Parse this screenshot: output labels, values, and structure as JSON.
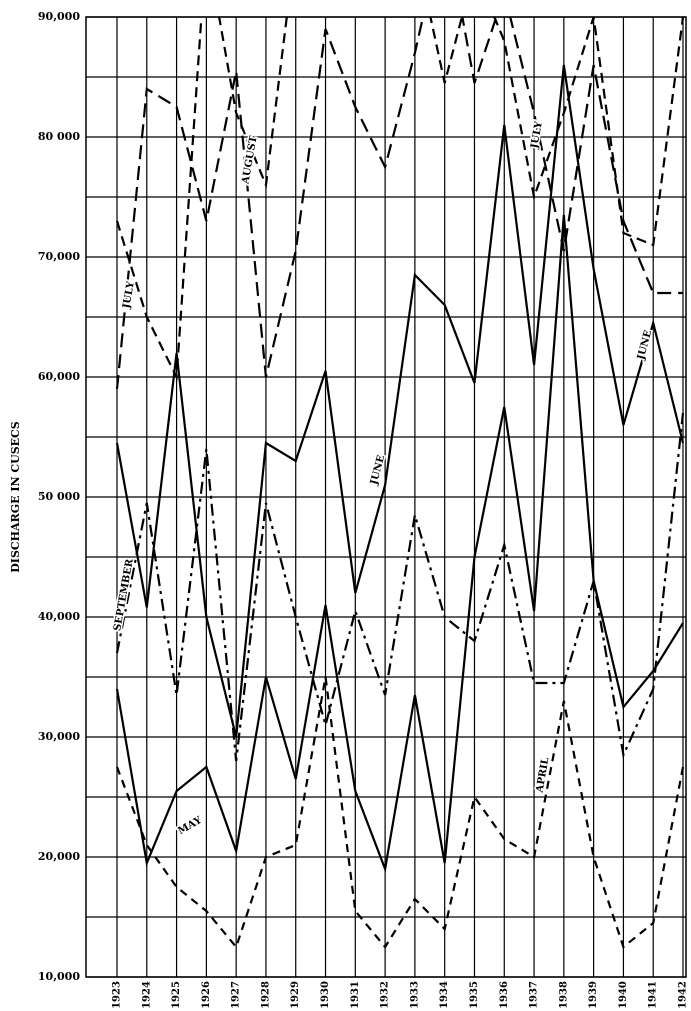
{
  "chart_data": {
    "type": "line",
    "y_label": "DISCHARGE IN CUSECS",
    "categories": [
      "1923",
      "1924",
      "1925",
      "1926",
      "1927",
      "1928",
      "1929",
      "1930",
      "1931",
      "1932",
      "1933",
      "1934",
      "1935",
      "1936",
      "1937",
      "1938",
      "1939",
      "1940",
      "1941",
      "1942"
    ],
    "series": [
      {
        "name": "JUNE",
        "color": "#000000",
        "style": "solid",
        "values": [
          54500,
          40800,
          62000,
          40000,
          30000,
          54500,
          53000,
          60500,
          42000,
          51000,
          68500,
          66000,
          59500,
          81000,
          61000,
          86000,
          69000,
          56000,
          64500,
          54500
        ]
      },
      {
        "name": "MAY",
        "color": "#000000",
        "style": "solid",
        "values": [
          34000,
          19500,
          25500,
          27500,
          20500,
          35000,
          26500,
          41000,
          25500,
          19000,
          33500,
          19500,
          45000,
          57500,
          40500,
          73500,
          43000,
          32500,
          35500,
          39500
        ]
      },
      {
        "name": "JULY",
        "color": "#000000",
        "style": "longdash",
        "values": [
          59000,
          84000,
          82500,
          73000,
          85500,
          60000,
          70500,
          89000,
          82500,
          77500,
          87000,
          98000,
          84500,
          92000,
          82000,
          70500,
          86000,
          73000,
          67000,
          67000
        ]
      },
      {
        "name": "AUGUST",
        "color": "#000000",
        "style": "dashed",
        "values": [
          73000,
          65000,
          60000,
          96000,
          82000,
          76000,
          96000,
          90000,
          95000,
          94000,
          96000,
          84500,
          94000,
          88000,
          75000,
          82000,
          90000,
          72000,
          71000,
          90000
        ]
      },
      {
        "name": "SEPTEMBER",
        "color": "#000000",
        "style": "dashdot",
        "values": [
          37000,
          49500,
          33500,
          54000,
          28000,
          49500,
          40000,
          31000,
          40500,
          33500,
          48500,
          40000,
          38000,
          46000,
          34500,
          34500,
          43000,
          28500,
          34000,
          57000
        ]
      },
      {
        "name": "APRIL",
        "color": "#000000",
        "style": "shortdash",
        "values": [
          27500,
          21000,
          17500,
          15500,
          12500,
          20000,
          21000,
          35000,
          15500,
          12500,
          16500,
          14000,
          25000,
          21500,
          20000,
          33000,
          20000,
          12500,
          14500,
          27500
        ]
      }
    ],
    "ylim": [
      10000,
      90000
    ],
    "yticks": [
      {
        "value": 90000,
        "label": "90,000"
      },
      {
        "value": 80000,
        "label": "80 000"
      },
      {
        "value": 70000,
        "label": "70,000"
      },
      {
        "value": 60000,
        "label": "60,000"
      },
      {
        "value": 50000,
        "label": "50 000"
      },
      {
        "value": 40000,
        "label": "40,000"
      },
      {
        "value": 30000,
        "label": "30,000"
      },
      {
        "value": 20000,
        "label": "20,000"
      },
      {
        "value": 10000,
        "label": "10,000"
      }
    ],
    "minor_grid": [
      85000,
      75000,
      65000,
      55000,
      45000,
      35000,
      25000,
      15000
    ],
    "grid": true
  }
}
